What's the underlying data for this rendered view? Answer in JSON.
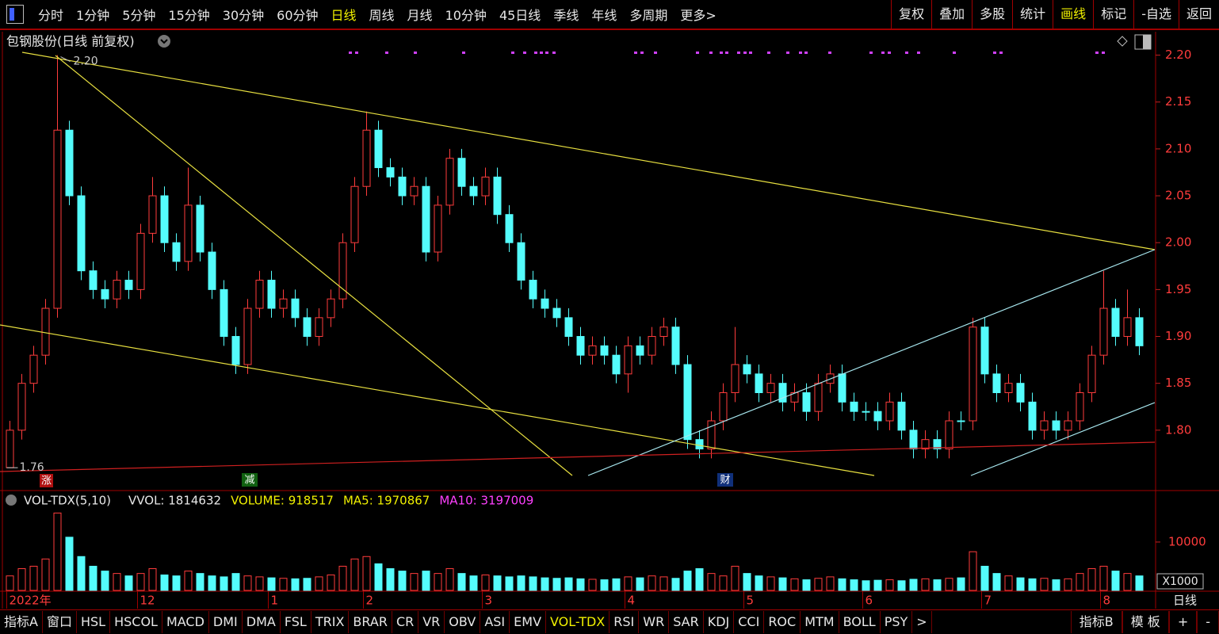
{
  "toolbar": {
    "left": [
      "分时",
      "1分钟",
      "5分钟",
      "15分钟",
      "30分钟",
      "60分钟",
      "日线",
      "周线",
      "月线",
      "10分钟",
      "45日线",
      "季线",
      "年线",
      "多周期",
      "更多>"
    ],
    "left_active": 6,
    "right": [
      "复权",
      "叠加",
      "多股",
      "统计",
      "画线",
      "标记",
      "-自选",
      "返回"
    ],
    "right_active": 4
  },
  "chart_data": {
    "type": "candlestick",
    "title": "包钢股份(日线 前复权)",
    "categories": [
      "2022年",
      null,
      null,
      null,
      null,
      null,
      null,
      null,
      null,
      null,
      null,
      "12",
      null,
      null,
      null,
      null,
      null,
      null,
      null,
      null,
      null,
      null,
      "1",
      null,
      null,
      null,
      null,
      null,
      null,
      null,
      "2",
      null,
      null,
      null,
      null,
      null,
      null,
      null,
      null,
      null,
      "3",
      null,
      null,
      null,
      null,
      null,
      null,
      null,
      null,
      null,
      null,
      null,
      "4",
      null,
      null,
      null,
      null,
      null,
      null,
      null,
      null,
      null,
      "5",
      null,
      null,
      null,
      null,
      null,
      null,
      null,
      null,
      null,
      "6",
      null,
      null,
      null,
      null,
      null,
      null,
      null,
      null,
      null,
      "7",
      null,
      null,
      null,
      null,
      null,
      null,
      null,
      null,
      null,
      "8",
      null,
      null,
      null
    ],
    "open": [
      1.76,
      1.8,
      1.85,
      1.88,
      1.93,
      2.12,
      2.05,
      1.97,
      1.95,
      1.94,
      1.96,
      1.95,
      2.01,
      2.05,
      2.0,
      1.98,
      2.04,
      1.99,
      1.95,
      1.9,
      1.87,
      1.93,
      1.96,
      1.93,
      1.94,
      1.92,
      1.9,
      1.92,
      1.94,
      2.0,
      2.06,
      2.12,
      2.08,
      2.07,
      2.05,
      2.06,
      1.99,
      2.04,
      2.09,
      2.06,
      2.05,
      2.07,
      2.03,
      2.0,
      1.96,
      1.94,
      1.93,
      1.92,
      1.9,
      1.88,
      1.89,
      1.88,
      1.86,
      1.89,
      1.88,
      1.9,
      1.91,
      1.87,
      1.79,
      1.78,
      1.81,
      1.84,
      1.87,
      1.86,
      1.84,
      1.85,
      1.83,
      1.84,
      1.82,
      1.85,
      1.86,
      1.83,
      1.82,
      1.82,
      1.81,
      1.83,
      1.8,
      1.78,
      1.79,
      1.78,
      1.81,
      1.81,
      1.91,
      1.86,
      1.84,
      1.85,
      1.83,
      1.8,
      1.81,
      1.8,
      1.81,
      1.84,
      1.88,
      1.93,
      1.9,
      1.92
    ],
    "high": [
      1.81,
      1.86,
      1.89,
      1.94,
      2.2,
      2.13,
      2.06,
      1.98,
      1.96,
      1.97,
      1.97,
      2.02,
      2.07,
      2.06,
      2.01,
      2.08,
      2.05,
      2.0,
      1.96,
      1.91,
      1.94,
      1.97,
      1.97,
      1.95,
      1.95,
      1.93,
      1.93,
      1.95,
      2.01,
      2.07,
      2.14,
      2.13,
      2.09,
      2.08,
      2.07,
      2.07,
      2.05,
      2.1,
      2.1,
      2.07,
      2.08,
      2.08,
      2.04,
      2.01,
      1.97,
      1.95,
      1.94,
      1.93,
      1.91,
      1.9,
      1.9,
      1.89,
      1.9,
      1.9,
      1.91,
      1.92,
      1.92,
      1.88,
      1.8,
      1.82,
      1.85,
      1.91,
      1.88,
      1.87,
      1.86,
      1.86,
      1.85,
      1.85,
      1.86,
      1.87,
      1.87,
      1.84,
      1.83,
      1.83,
      1.84,
      1.84,
      1.81,
      1.8,
      1.8,
      1.82,
      1.82,
      1.92,
      1.92,
      1.87,
      1.86,
      1.86,
      1.84,
      1.82,
      1.82,
      1.82,
      1.85,
      1.89,
      1.97,
      1.94,
      1.95,
      1.93
    ],
    "low": [
      1.76,
      1.79,
      1.84,
      1.87,
      1.92,
      2.04,
      1.96,
      1.94,
      1.93,
      1.93,
      1.94,
      1.94,
      2.0,
      1.99,
      1.97,
      1.97,
      1.98,
      1.94,
      1.89,
      1.86,
      1.86,
      1.92,
      1.92,
      1.92,
      1.91,
      1.89,
      1.89,
      1.91,
      1.93,
      1.99,
      2.05,
      2.07,
      2.06,
      2.04,
      2.04,
      1.98,
      1.98,
      2.03,
      2.05,
      2.04,
      2.04,
      2.02,
      1.99,
      1.95,
      1.93,
      1.92,
      1.91,
      1.89,
      1.87,
      1.87,
      1.87,
      1.85,
      1.84,
      1.87,
      1.87,
      1.89,
      1.86,
      1.78,
      1.77,
      1.77,
      1.8,
      1.83,
      1.85,
      1.83,
      1.83,
      1.82,
      1.82,
      1.81,
      1.81,
      1.84,
      1.82,
      1.81,
      1.81,
      1.8,
      1.8,
      1.79,
      1.77,
      1.77,
      1.77,
      1.77,
      1.8,
      1.8,
      1.85,
      1.83,
      1.83,
      1.82,
      1.79,
      1.79,
      1.79,
      1.79,
      1.8,
      1.83,
      1.87,
      1.89,
      1.89,
      1.88
    ],
    "close": [
      1.8,
      1.85,
      1.88,
      1.93,
      2.12,
      2.05,
      1.97,
      1.95,
      1.94,
      1.96,
      1.95,
      2.01,
      2.05,
      2.0,
      1.98,
      2.04,
      1.99,
      1.95,
      1.9,
      1.87,
      1.93,
      1.96,
      1.93,
      1.94,
      1.92,
      1.9,
      1.92,
      1.94,
      2.0,
      2.06,
      2.12,
      2.08,
      2.07,
      2.05,
      2.06,
      1.99,
      2.04,
      2.09,
      2.06,
      2.05,
      2.07,
      2.03,
      2.0,
      1.96,
      1.94,
      1.93,
      1.92,
      1.9,
      1.88,
      1.89,
      1.88,
      1.86,
      1.89,
      1.88,
      1.9,
      1.91,
      1.87,
      1.79,
      1.78,
      1.81,
      1.84,
      1.87,
      1.86,
      1.84,
      1.85,
      1.83,
      1.84,
      1.82,
      1.85,
      1.86,
      1.83,
      1.82,
      1.82,
      1.81,
      1.83,
      1.8,
      1.78,
      1.79,
      1.78,
      1.81,
      1.81,
      1.91,
      1.86,
      1.84,
      1.85,
      1.83,
      1.8,
      1.81,
      1.8,
      1.81,
      1.84,
      1.88,
      1.93,
      1.9,
      1.92,
      1.89
    ],
    "ylim": [
      1.739,
      2.225
    ],
    "yticks": [
      {
        "value": 2.2,
        "label": "2.20"
      },
      2.15,
      {
        "value": 2.1,
        "label": "2.10"
      },
      2.05,
      {
        "value": 2.0,
        "label": "2.00"
      },
      1.95,
      {
        "value": 1.9,
        "label": "1.90"
      },
      1.85,
      {
        "value": 1.8,
        "label": "1.80"
      }
    ],
    "up_color": "#ff3c3c",
    "down_color": "#54fcfc",
    "high_label": "2.20",
    "low_label": "1.76",
    "events": [
      "涨",
      "减",
      "财"
    ],
    "volume_panel": {
      "title": "VOL-TDX(5,10)",
      "readouts": [
        {
          "text": "VVOL: 1814632",
          "color": "#e8e8e8"
        },
        {
          "text": "VOLUME: 918517",
          "color": "#f0f000"
        },
        {
          "text": "MA5: 1970867",
          "color": "#f0f000"
        },
        {
          "text": "MA10: 3197009",
          "color": "#ff40ff"
        }
      ],
      "values": [
        3000,
        4500,
        5000,
        6500,
        16000,
        11000,
        7000,
        5000,
        4000,
        3500,
        3000,
        3500,
        4500,
        3200,
        3000,
        4000,
        3500,
        3000,
        2800,
        3500,
        3000,
        2800,
        2600,
        2500,
        2400,
        2500,
        2800,
        3200,
        5000,
        6500,
        7000,
        5500,
        4500,
        4000,
        3500,
        4000,
        3500,
        4500,
        3500,
        3000,
        3200,
        3000,
        2800,
        3000,
        2800,
        2600,
        2500,
        2600,
        2400,
        2300,
        2200,
        2400,
        2800,
        2600,
        3000,
        2800,
        2500,
        4000,
        4500,
        3500,
        3000,
        5000,
        3500,
        3000,
        2800,
        2600,
        2400,
        2200,
        2500,
        2800,
        2400,
        2200,
        2000,
        2100,
        2200,
        2000,
        2300,
        2400,
        2200,
        2500,
        2600,
        8000,
        5000,
        3500,
        3000,
        2600,
        2400,
        2500,
        2200,
        2400,
        3500,
        4500,
        5000,
        4000,
        3500,
        3000
      ],
      "ylim": [
        0,
        17200
      ],
      "yticks": [
        10000
      ],
      "unit_label": "X1000"
    },
    "period_label": "日线"
  },
  "bottom_tabs": {
    "left": [
      "指标A",
      "窗口",
      "HSL",
      "HSCOL",
      "MACD",
      "DMI",
      "DMA",
      "FSL",
      "TRIX",
      "BRAR",
      "CR",
      "VR",
      "OBV",
      "ASI",
      "EMV",
      "VOL-TDX",
      "RSI",
      "WR",
      "SAR",
      "KDJ",
      "CCI",
      "ROC",
      "MTM",
      "BOLL",
      "PSY",
      ">"
    ],
    "left_active": 15,
    "right": [
      "指标B",
      "模 板",
      "+",
      "-"
    ]
  }
}
